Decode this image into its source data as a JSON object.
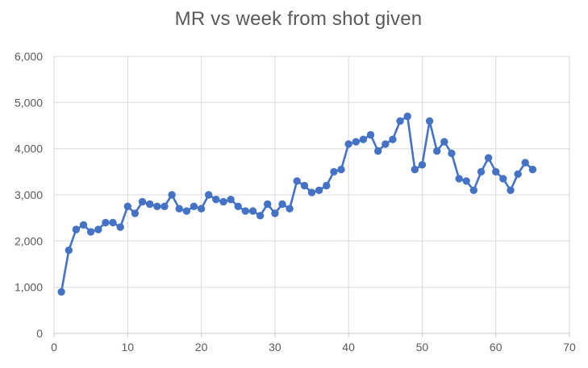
{
  "chart_data": {
    "type": "line",
    "title": "MR vs week from shot given",
    "xlabel": "",
    "ylabel": "",
    "series_name": "MR",
    "x": [
      1,
      2,
      3,
      4,
      5,
      6,
      7,
      8,
      9,
      10,
      11,
      12,
      13,
      14,
      15,
      16,
      17,
      18,
      19,
      20,
      21,
      22,
      23,
      24,
      25,
      26,
      27,
      28,
      29,
      30,
      31,
      32,
      33,
      34,
      35,
      36,
      37,
      38,
      39,
      40,
      41,
      42,
      43,
      44,
      45,
      46,
      47,
      48,
      49,
      50,
      51,
      52,
      53,
      54,
      55,
      56,
      57,
      58,
      59,
      60,
      61,
      62,
      63,
      64,
      65
    ],
    "values": [
      900,
      1800,
      2250,
      2350,
      2200,
      2250,
      2400,
      2400,
      2300,
      2750,
      2600,
      2850,
      2800,
      2750,
      2750,
      3000,
      2700,
      2650,
      2750,
      2700,
      3000,
      2900,
      2850,
      2900,
      2750,
      2650,
      2650,
      2550,
      2800,
      2600,
      2800,
      2700,
      3300,
      3200,
      3050,
      3100,
      3200,
      3500,
      3550,
      4100,
      4150,
      4200,
      4300,
      3950,
      4100,
      4200,
      4600,
      4700,
      3550,
      3650,
      4600,
      3950,
      4150,
      3900,
      3350,
      3300,
      3100,
      3500,
      3800,
      3500,
      3350,
      3100,
      3450,
      3700,
      3550
    ],
    "xlim": [
      0,
      70
    ],
    "ylim": [
      0,
      6000
    ],
    "x_ticks": [
      0,
      10,
      20,
      30,
      40,
      50,
      60,
      70
    ],
    "x_tick_labels": [
      "0",
      "10",
      "20",
      "30",
      "40",
      "50",
      "60",
      "70"
    ],
    "y_ticks": [
      0,
      1000,
      2000,
      3000,
      4000,
      5000,
      6000
    ],
    "y_tick_labels": [
      "0",
      "1,000",
      "2,000",
      "3,000",
      "4,000",
      "5,000",
      "6,000"
    ],
    "grid": true,
    "legend_position": "none",
    "marker": "circle",
    "colors": {
      "series": "#4472C4",
      "gridline": "#D9D9D9",
      "axis_line": "#C8C8C8",
      "tick_text": "#595959",
      "title_text": "#595959",
      "background": "#FFFFFF"
    }
  }
}
